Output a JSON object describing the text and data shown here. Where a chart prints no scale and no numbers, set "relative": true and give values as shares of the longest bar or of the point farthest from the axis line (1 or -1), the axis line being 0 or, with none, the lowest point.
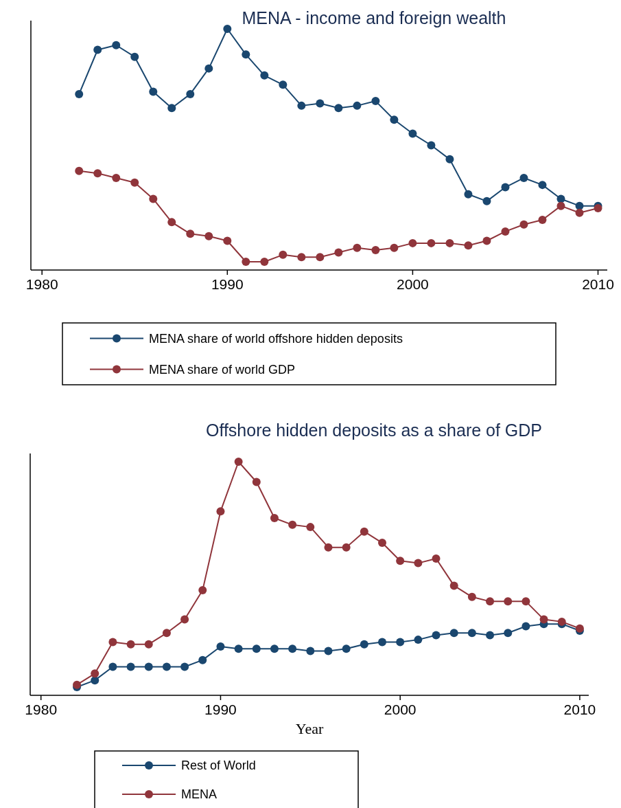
{
  "chart_data": [
    {
      "type": "line",
      "title": "MENA - income and foreign wealth",
      "relative": true,
      "marker": "circle",
      "legend": "bottom",
      "x": [
        1982,
        1983,
        1984,
        1985,
        1986,
        1987,
        1988,
        1989,
        1990,
        1991,
        1992,
        1993,
        1994,
        1995,
        1996,
        1997,
        1998,
        1999,
        2000,
        2001,
        2002,
        2003,
        2004,
        2005,
        2006,
        2007,
        2008,
        2009,
        2010
      ],
      "xlim": [
        1979.4,
        2010.5
      ],
      "xticks": [
        1980,
        1990,
        2000,
        2010
      ],
      "series": [
        {
          "name": "MENA share of world offshore hidden deposits",
          "color": "#1a476f",
          "values": [
            0.72,
            0.91,
            0.93,
            0.88,
            0.73,
            0.66,
            0.72,
            0.83,
            1.0,
            0.89,
            0.8,
            0.76,
            0.67,
            0.68,
            0.66,
            0.67,
            0.69,
            0.61,
            0.55,
            0.5,
            0.44,
            0.29,
            0.26,
            0.32,
            0.36,
            0.33,
            0.27,
            0.24,
            0.24
          ]
        },
        {
          "name": "MENA share of world GDP",
          "color": "#90353b",
          "values": [
            0.39,
            0.38,
            0.36,
            0.34,
            0.27,
            0.17,
            0.12,
            0.11,
            0.09,
            0.0,
            0.0,
            0.03,
            0.02,
            0.02,
            0.04,
            0.06,
            0.05,
            0.06,
            0.08,
            0.08,
            0.08,
            0.07,
            0.09,
            0.13,
            0.16,
            0.18,
            0.24,
            0.21,
            0.23
          ]
        }
      ]
    },
    {
      "type": "line",
      "title": "Offshore hidden deposits as a share of GDP",
      "xlabel": "Year",
      "relative": true,
      "marker": "circle",
      "legend": "bottom",
      "x": [
        1982,
        1983,
        1984,
        1985,
        1986,
        1987,
        1988,
        1989,
        1990,
        1991,
        1992,
        1993,
        1994,
        1995,
        1996,
        1997,
        1998,
        1999,
        2000,
        2001,
        2002,
        2003,
        2004,
        2005,
        2006,
        2007,
        2008,
        2009,
        2010
      ],
      "xlim": [
        1979.4,
        2010.5
      ],
      "xticks": [
        1980,
        1990,
        2000,
        2010
      ],
      "series": [
        {
          "name": "Rest of World",
          "color": "#1a476f",
          "values": [
            0.0,
            0.03,
            0.09,
            0.09,
            0.09,
            0.09,
            0.09,
            0.12,
            0.18,
            0.17,
            0.17,
            0.17,
            0.17,
            0.16,
            0.16,
            0.17,
            0.19,
            0.2,
            0.2,
            0.21,
            0.23,
            0.24,
            0.24,
            0.23,
            0.24,
            0.27,
            0.28,
            0.28,
            0.25
          ]
        },
        {
          "name": "MENA",
          "color": "#90353b",
          "values": [
            0.01,
            0.06,
            0.2,
            0.19,
            0.19,
            0.24,
            0.3,
            0.43,
            0.78,
            1.0,
            0.91,
            0.75,
            0.72,
            0.71,
            0.62,
            0.62,
            0.69,
            0.64,
            0.56,
            0.55,
            0.57,
            0.45,
            0.4,
            0.38,
            0.38,
            0.38,
            0.3,
            0.29,
            0.26
          ]
        }
      ]
    }
  ]
}
